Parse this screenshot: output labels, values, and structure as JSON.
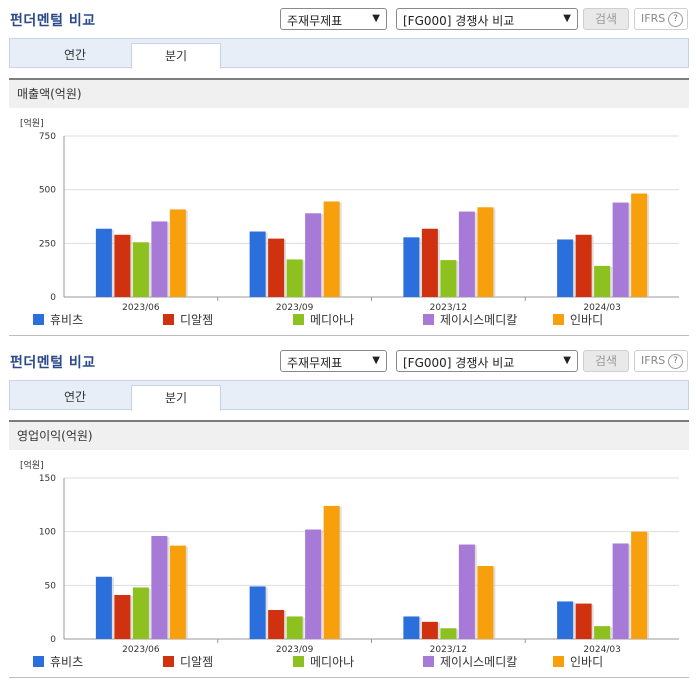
{
  "colors": {
    "series": [
      "#2a6fdb",
      "#d0310f",
      "#8cc11f",
      "#a77ad8",
      "#f7a00c"
    ],
    "axis": "#999999",
    "grid": "#dddddd"
  },
  "sections": [
    {
      "title": "펀더멘털 비교",
      "select1": "주재무제표",
      "select2": "[FG000] 경쟁사 비교",
      "search_label": "검색",
      "ifrs_label": "IFRS",
      "ifrs_help": "?",
      "tabs": [
        {
          "label": "연간",
          "active": false
        },
        {
          "label": "분기",
          "active": true
        }
      ],
      "chart_title": "매출액(억원)"
    },
    {
      "title": "펀더멘털 비교",
      "select1": "주재무제표",
      "select2": "[FG000] 경쟁사 비교",
      "search_label": "검색",
      "ifrs_label": "IFRS",
      "ifrs_help": "?",
      "tabs": [
        {
          "label": "연간",
          "active": false
        },
        {
          "label": "분기",
          "active": true
        }
      ],
      "chart_title": "영업이익(억원)"
    }
  ],
  "chart_data": [
    {
      "type": "bar",
      "title": "매출액(억원)",
      "unit_label": "[억원]",
      "categories": [
        "2023/06",
        "2023/09",
        "2023/12",
        "2024/03"
      ],
      "yticks": [
        0,
        250,
        500,
        750
      ],
      "ylim": [
        0,
        750
      ],
      "grid": true,
      "legend_position": "bottom",
      "series": [
        {
          "name": "휴비츠",
          "values": [
            318,
            305,
            278,
            268
          ]
        },
        {
          "name": "디알젬",
          "values": [
            290,
            272,
            318,
            290
          ]
        },
        {
          "name": "메디아나",
          "values": [
            255,
            175,
            172,
            145
          ]
        },
        {
          "name": "제이시스메디칼",
          "values": [
            352,
            390,
            398,
            440
          ]
        },
        {
          "name": "인바디",
          "values": [
            408,
            445,
            418,
            482
          ]
        }
      ]
    },
    {
      "type": "bar",
      "title": "영업이익(억원)",
      "unit_label": "[억원]",
      "categories": [
        "2023/06",
        "2023/09",
        "2023/12",
        "2024/03"
      ],
      "yticks": [
        0,
        50,
        100,
        150
      ],
      "ylim": [
        0,
        150
      ],
      "grid": true,
      "legend_position": "bottom",
      "series": [
        {
          "name": "휴비츠",
          "values": [
            58,
            49,
            21,
            35
          ]
        },
        {
          "name": "디알젬",
          "values": [
            41,
            27,
            16,
            33
          ]
        },
        {
          "name": "메디아나",
          "values": [
            48,
            21,
            10,
            12
          ]
        },
        {
          "name": "제이시스메디칼",
          "values": [
            96,
            102,
            88,
            89
          ]
        },
        {
          "name": "인바디",
          "values": [
            87,
            124,
            68,
            100
          ]
        }
      ]
    }
  ]
}
